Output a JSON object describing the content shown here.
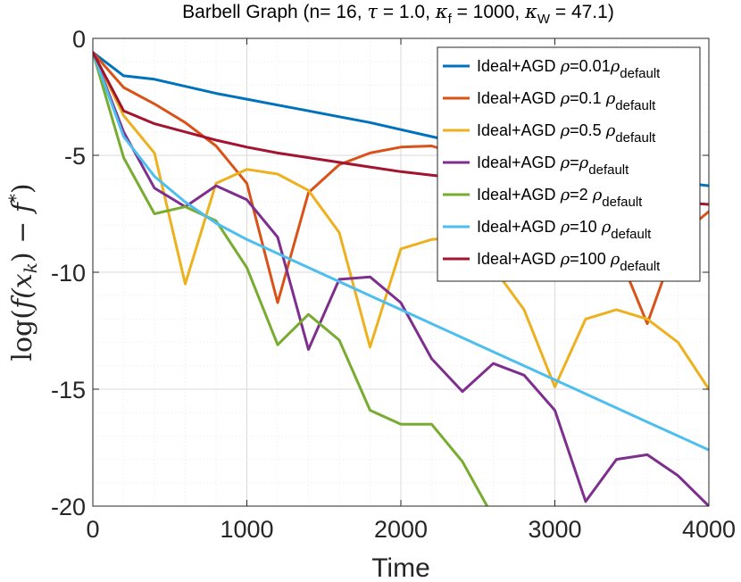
{
  "chart_data": {
    "type": "line",
    "title": {
      "prefix": "Barbell Graph (n= 16, ",
      "tau_sym": "τ",
      "tau_val": " = 1.0, ",
      "kappa_sym": "κ",
      "kf_sub": "f",
      "kf_val": " = 1000, ",
      "kw_sub": "W",
      "kw_val": " = 47.1)"
    },
    "xlabel": "Time",
    "ylabel": "log(f(x_k) − f*)",
    "ylabel_parts": {
      "log": "log(",
      "f": "f",
      "x": "(x",
      "k": "k",
      "close": ")",
      "minus": " − ",
      "fstar": "f",
      "star": "*",
      "end": ")"
    },
    "xlim": [
      0,
      4000
    ],
    "ylim": [
      -20,
      0
    ],
    "xticks": [
      0,
      1000,
      2000,
      3000,
      4000
    ],
    "yticks": [
      0,
      -5,
      -10,
      -15,
      -20
    ],
    "xtick_labels": [
      "0",
      "1000",
      "2000",
      "3000",
      "4000"
    ],
    "ytick_labels": [
      "0",
      "-5",
      "-10",
      "-15",
      "-20"
    ],
    "grid": true,
    "legend_location": "top-right",
    "series": [
      {
        "name": "Ideal+AGD ρ=0.01ρdefault",
        "label_main": "Ideal+AGD ",
        "rho": "ρ",
        "label_mid": "=0.01",
        "rho2": "ρ",
        "sub": "default",
        "color": "#0072BD",
        "x": [
          0,
          200,
          400,
          600,
          800,
          1000,
          1200,
          1400,
          1600,
          1800,
          2000,
          2200,
          2400,
          2600,
          2800,
          3000,
          3200,
          3400,
          3600,
          3800,
          4000
        ],
        "y": [
          -0.6,
          -1.6,
          -1.75,
          -2.05,
          -2.35,
          -2.6,
          -2.85,
          -3.1,
          -3.35,
          -3.6,
          -3.9,
          -4.2,
          -4.5,
          -4.75,
          -5.0,
          -5.2,
          -5.5,
          -5.75,
          -5.95,
          -6.15,
          -6.3
        ]
      },
      {
        "name": "Ideal+AGD ρ=0.1 ρdefault",
        "label_main": "Ideal+AGD ",
        "rho": "ρ",
        "label_mid": "=0.1 ",
        "rho2": "ρ",
        "sub": "default",
        "color": "#D95319",
        "x": [
          0,
          200,
          400,
          600,
          800,
          1000,
          1200,
          1400,
          1600,
          1800,
          2000,
          2200,
          2400,
          2600,
          2800,
          3000,
          3200,
          3400,
          3600,
          3800,
          4000
        ],
        "y": [
          -0.6,
          -2.1,
          -2.8,
          -3.6,
          -4.6,
          -6.2,
          -11.3,
          -6.6,
          -5.4,
          -4.9,
          -4.65,
          -4.6,
          -5.0,
          -6.0,
          -7.0,
          -8.0,
          -8.5,
          -9.0,
          -12.2,
          -8.5,
          -7.4
        ]
      },
      {
        "name": "Ideal+AGD ρ=0.5 ρdefault",
        "label_main": "Ideal+AGD ",
        "rho": "ρ",
        "label_mid": "=0.5 ",
        "rho2": "ρ",
        "sub": "default",
        "color": "#EDB120",
        "x": [
          0,
          200,
          400,
          600,
          800,
          1000,
          1200,
          1400,
          1600,
          1800,
          2000,
          2200,
          2400,
          2600,
          2800,
          3000,
          3200,
          3400,
          3600,
          3800,
          4000
        ],
        "y": [
          -0.6,
          -3.3,
          -4.9,
          -10.5,
          -6.2,
          -5.6,
          -5.8,
          -6.5,
          -8.3,
          -13.2,
          -9.0,
          -8.6,
          -8.5,
          -9.8,
          -11.6,
          -14.9,
          -12.0,
          -11.6,
          -12.0,
          -13.0,
          -15.0
        ]
      },
      {
        "name": "Ideal+AGD ρ=ρdefault",
        "label_main": "Ideal+AGD ",
        "rho": "ρ",
        "label_mid": "=",
        "rho2": "ρ",
        "sub": "default",
        "color": "#7E2F8E",
        "x": [
          0,
          200,
          400,
          600,
          800,
          1000,
          1200,
          1400,
          1600,
          1800,
          2000,
          2200,
          2400,
          2600,
          2800,
          3000,
          3200,
          3400,
          3600,
          3800,
          4000
        ],
        "y": [
          -0.6,
          -4.0,
          -6.4,
          -7.2,
          -6.3,
          -6.9,
          -8.5,
          -13.3,
          -10.3,
          -10.2,
          -11.3,
          -13.7,
          -15.1,
          -13.9,
          -14.4,
          -15.9,
          -19.8,
          -18.0,
          -17.8,
          -18.7,
          -20.0
        ]
      },
      {
        "name": "Ideal+AGD ρ=2 ρdefault",
        "label_main": "Ideal+AGD ",
        "rho": "ρ",
        "label_mid": "=2 ",
        "rho2": "ρ",
        "sub": "default",
        "color": "#77AC30",
        "x": [
          0,
          200,
          400,
          600,
          800,
          1000,
          1200,
          1400,
          1600,
          1800,
          2000,
          2200,
          2400,
          2560
        ],
        "y": [
          -0.6,
          -5.1,
          -7.5,
          -7.2,
          -7.8,
          -9.8,
          -13.1,
          -11.8,
          -12.9,
          -15.9,
          -16.5,
          -16.5,
          -18.1,
          -20.0
        ]
      },
      {
        "name": "Ideal+AGD ρ=10 ρdefault",
        "label_main": "Ideal+AGD ",
        "rho": "ρ",
        "label_mid": "=10 ",
        "rho2": "ρ",
        "sub": "default",
        "color": "#4DBEEE",
        "x": [
          0,
          200,
          400,
          600,
          800,
          1000,
          1200,
          1400,
          1600,
          1800,
          2000,
          2200,
          2400,
          2600,
          2800,
          3000,
          3200,
          3400,
          3600,
          3800,
          4000
        ],
        "y": [
          -0.6,
          -4.2,
          -5.9,
          -7.0,
          -7.9,
          -8.6,
          -9.2,
          -9.8,
          -10.4,
          -11.0,
          -11.6,
          -12.2,
          -12.8,
          -13.4,
          -14.0,
          -14.6,
          -15.2,
          -15.8,
          -16.4,
          -17.0,
          -17.6
        ]
      },
      {
        "name": "Ideal+AGD ρ=100 ρdefault",
        "label_main": "Ideal+AGD ",
        "rho": "ρ",
        "label_mid": "=100 ",
        "rho2": "ρ",
        "sub": "default",
        "color": "#A2142F",
        "x": [
          0,
          200,
          400,
          600,
          800,
          1000,
          1200,
          1400,
          1600,
          1800,
          2000,
          2200,
          2400,
          2600,
          2800,
          3000,
          3200,
          3400,
          3600,
          3800,
          4000
        ],
        "y": [
          -0.6,
          -3.1,
          -3.65,
          -4.0,
          -4.35,
          -4.65,
          -4.9,
          -5.1,
          -5.3,
          -5.5,
          -5.7,
          -5.85,
          -6.0,
          -6.15,
          -6.3,
          -6.45,
          -6.6,
          -6.75,
          -6.9,
          -7.0,
          -7.1
        ]
      }
    ]
  }
}
